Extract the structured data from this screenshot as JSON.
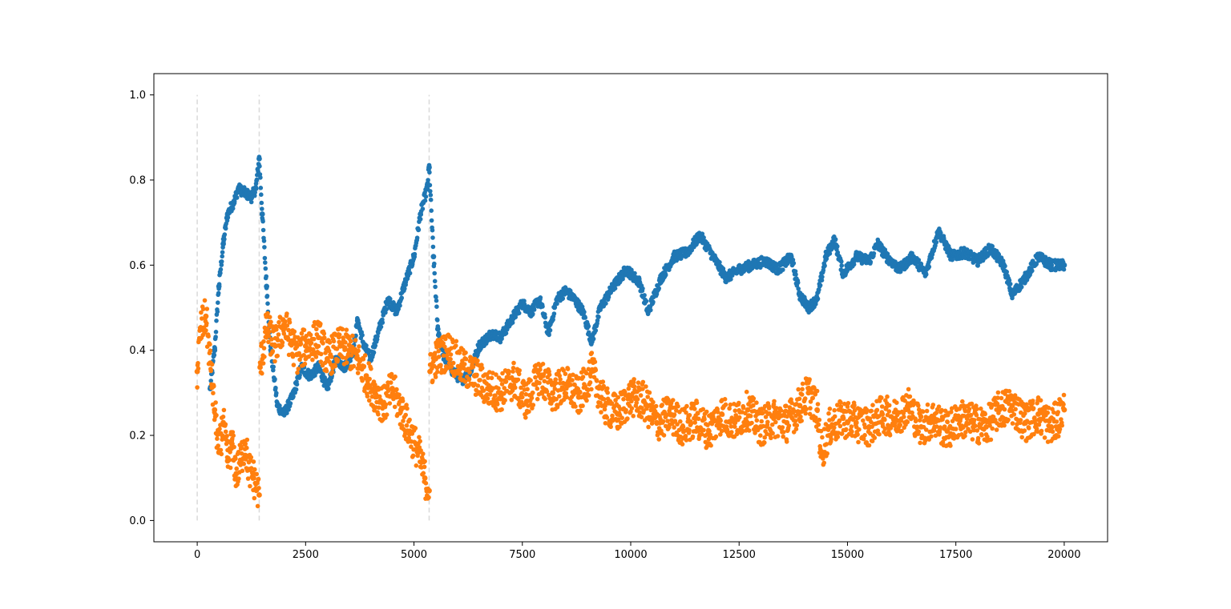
{
  "chart_data": {
    "type": "scatter",
    "title": "",
    "xlabel": "",
    "ylabel": "",
    "xlim": [
      -1000,
      21000
    ],
    "ylim": [
      -0.05,
      1.05
    ],
    "x_ticks": [
      0,
      2500,
      5000,
      7500,
      10000,
      12500,
      15000,
      17500,
      20000
    ],
    "x_tick_labels": [
      "0",
      "2500",
      "5000",
      "7500",
      "10000",
      "12500",
      "15000",
      "17500",
      "20000"
    ],
    "y_ticks": [
      0.0,
      0.2,
      0.4,
      0.6,
      0.8,
      1.0
    ],
    "y_tick_labels": [
      "0.0",
      "0.2",
      "0.4",
      "0.6",
      "0.8",
      "1.0"
    ],
    "grid": false,
    "legend": "none",
    "vlines": [
      {
        "x": 0,
        "ymin": 0,
        "ymax": 1.0,
        "style": "dashed",
        "color": "#d9d9d9"
      },
      {
        "x": 1430,
        "ymin": 0,
        "ymax": 1.0,
        "style": "dashed",
        "color": "#d9d9d9"
      },
      {
        "x": 5350,
        "ymin": 0,
        "ymax": 1.0,
        "style": "dashed",
        "color": "#d9d9d9"
      }
    ],
    "series": [
      {
        "color": "#1f77b4",
        "points": [
          [
            300,
            0.31
          ],
          [
            400,
            0.4
          ],
          [
            500,
            0.55
          ],
          [
            600,
            0.65
          ],
          [
            700,
            0.72
          ],
          [
            850,
            0.75
          ],
          [
            950,
            0.78
          ],
          [
            1100,
            0.77
          ],
          [
            1250,
            0.76
          ],
          [
            1350,
            0.78
          ],
          [
            1430,
            0.85
          ],
          [
            1500,
            0.72
          ],
          [
            1600,
            0.55
          ],
          [
            1700,
            0.4
          ],
          [
            1850,
            0.27
          ],
          [
            2000,
            0.25
          ],
          [
            2200,
            0.29
          ],
          [
            2400,
            0.36
          ],
          [
            2600,
            0.34
          ],
          [
            2800,
            0.36
          ],
          [
            3000,
            0.31
          ],
          [
            3200,
            0.38
          ],
          [
            3400,
            0.36
          ],
          [
            3600,
            0.4
          ],
          [
            3700,
            0.47
          ],
          [
            3850,
            0.41
          ],
          [
            4000,
            0.38
          ],
          [
            4200,
            0.45
          ],
          [
            4400,
            0.52
          ],
          [
            4600,
            0.49
          ],
          [
            4800,
            0.56
          ],
          [
            5000,
            0.62
          ],
          [
            5150,
            0.72
          ],
          [
            5300,
            0.78
          ],
          [
            5350,
            0.83
          ],
          [
            5450,
            0.62
          ],
          [
            5550,
            0.45
          ],
          [
            5700,
            0.38
          ],
          [
            5900,
            0.35
          ],
          [
            6100,
            0.33
          ],
          [
            6300,
            0.35
          ],
          [
            6500,
            0.41
          ],
          [
            6800,
            0.44
          ],
          [
            7000,
            0.43
          ],
          [
            7300,
            0.48
          ],
          [
            7500,
            0.51
          ],
          [
            7700,
            0.49
          ],
          [
            7900,
            0.52
          ],
          [
            8100,
            0.44
          ],
          [
            8300,
            0.52
          ],
          [
            8500,
            0.54
          ],
          [
            8700,
            0.52
          ],
          [
            8900,
            0.49
          ],
          [
            9100,
            0.42
          ],
          [
            9300,
            0.5
          ],
          [
            9600,
            0.55
          ],
          [
            9900,
            0.59
          ],
          [
            10200,
            0.56
          ],
          [
            10400,
            0.49
          ],
          [
            10700,
            0.57
          ],
          [
            11000,
            0.62
          ],
          [
            11300,
            0.63
          ],
          [
            11600,
            0.67
          ],
          [
            11900,
            0.62
          ],
          [
            12200,
            0.57
          ],
          [
            12500,
            0.59
          ],
          [
            12800,
            0.6
          ],
          [
            13100,
            0.61
          ],
          [
            13400,
            0.59
          ],
          [
            13700,
            0.62
          ],
          [
            13900,
            0.53
          ],
          [
            14100,
            0.5
          ],
          [
            14300,
            0.52
          ],
          [
            14500,
            0.62
          ],
          [
            14700,
            0.66
          ],
          [
            14900,
            0.58
          ],
          [
            15200,
            0.62
          ],
          [
            15500,
            0.61
          ],
          [
            15700,
            0.65
          ],
          [
            15900,
            0.62
          ],
          [
            16200,
            0.59
          ],
          [
            16500,
            0.62
          ],
          [
            16800,
            0.58
          ],
          [
            17100,
            0.68
          ],
          [
            17400,
            0.62
          ],
          [
            17700,
            0.63
          ],
          [
            18000,
            0.61
          ],
          [
            18300,
            0.64
          ],
          [
            18600,
            0.6
          ],
          [
            18800,
            0.53
          ],
          [
            19100,
            0.57
          ],
          [
            19400,
            0.62
          ],
          [
            19700,
            0.6
          ],
          [
            20000,
            0.6
          ]
        ]
      },
      {
        "color": "#ff7f0e",
        "points": [
          [
            0,
            0.35
          ],
          [
            80,
            0.45
          ],
          [
            200,
            0.48
          ],
          [
            300,
            0.37
          ],
          [
            400,
            0.26
          ],
          [
            500,
            0.16
          ],
          [
            600,
            0.23
          ],
          [
            700,
            0.14
          ],
          [
            800,
            0.18
          ],
          [
            900,
            0.11
          ],
          [
            1000,
            0.14
          ],
          [
            1100,
            0.18
          ],
          [
            1200,
            0.12
          ],
          [
            1300,
            0.1
          ],
          [
            1430,
            0.06
          ],
          [
            1450,
            0.36
          ],
          [
            1600,
            0.45
          ],
          [
            1800,
            0.41
          ],
          [
            2000,
            0.46
          ],
          [
            2300,
            0.39
          ],
          [
            2500,
            0.41
          ],
          [
            2800,
            0.43
          ],
          [
            3000,
            0.38
          ],
          [
            3300,
            0.41
          ],
          [
            3500,
            0.4
          ],
          [
            3700,
            0.38
          ],
          [
            3900,
            0.34
          ],
          [
            4100,
            0.3
          ],
          [
            4300,
            0.27
          ],
          [
            4500,
            0.31
          ],
          [
            4700,
            0.26
          ],
          [
            4900,
            0.21
          ],
          [
            5100,
            0.16
          ],
          [
            5250,
            0.1
          ],
          [
            5350,
            0.07
          ],
          [
            5370,
            0.35
          ],
          [
            5500,
            0.38
          ],
          [
            5800,
            0.4
          ],
          [
            6100,
            0.36
          ],
          [
            6400,
            0.34
          ],
          [
            6700,
            0.31
          ],
          [
            7000,
            0.3
          ],
          [
            7300,
            0.33
          ],
          [
            7600,
            0.28
          ],
          [
            7900,
            0.34
          ],
          [
            8200,
            0.3
          ],
          [
            8500,
            0.32
          ],
          [
            8800,
            0.29
          ],
          [
            9100,
            0.35
          ],
          [
            9400,
            0.27
          ],
          [
            9700,
            0.25
          ],
          [
            10000,
            0.29
          ],
          [
            10300,
            0.28
          ],
          [
            10600,
            0.23
          ],
          [
            10900,
            0.25
          ],
          [
            11200,
            0.22
          ],
          [
            11500,
            0.24
          ],
          [
            11800,
            0.21
          ],
          [
            12100,
            0.25
          ],
          [
            12400,
            0.23
          ],
          [
            12700,
            0.26
          ],
          [
            13000,
            0.22
          ],
          [
            13300,
            0.24
          ],
          [
            13600,
            0.23
          ],
          [
            13900,
            0.27
          ],
          [
            14100,
            0.3
          ],
          [
            14300,
            0.26
          ],
          [
            14400,
            0.16
          ],
          [
            14600,
            0.22
          ],
          [
            14900,
            0.24
          ],
          [
            15200,
            0.23
          ],
          [
            15500,
            0.22
          ],
          [
            15800,
            0.25
          ],
          [
            16100,
            0.24
          ],
          [
            16400,
            0.27
          ],
          [
            16700,
            0.22
          ],
          [
            17000,
            0.24
          ],
          [
            17300,
            0.21
          ],
          [
            17600,
            0.24
          ],
          [
            17900,
            0.23
          ],
          [
            18200,
            0.22
          ],
          [
            18500,
            0.26
          ],
          [
            18800,
            0.27
          ],
          [
            19100,
            0.23
          ],
          [
            19400,
            0.25
          ],
          [
            19700,
            0.22
          ],
          [
            20000,
            0.26
          ]
        ]
      }
    ]
  }
}
